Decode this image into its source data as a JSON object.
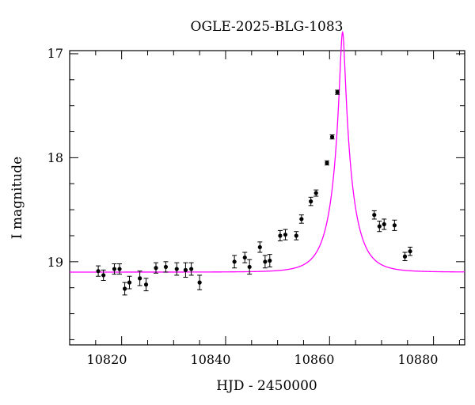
{
  "chart_data": {
    "type": "scatter",
    "title": "OGLE-2025-BLG-1083",
    "xlabel": "HJD - 2450000",
    "ylabel": "I magnitude",
    "xlim": [
      10810,
      10886
    ],
    "ylim": [
      19.8,
      16.97
    ],
    "y_inverted": true,
    "xticks": [
      10820,
      10840,
      10860,
      10880
    ],
    "xtick_labels": [
      "10820",
      "10840",
      "10860",
      "10880"
    ],
    "yticks": [
      17,
      18,
      19
    ],
    "ytick_labels": [
      "17",
      "18",
      "19"
    ],
    "grid": false,
    "colors": {
      "points": "#000000",
      "model": "#ff00ff",
      "axes": "#000000"
    },
    "series": [
      {
        "kind": "data",
        "points": [
          {
            "x": 10815.5,
            "y": 19.09,
            "err": 0.05
          },
          {
            "x": 10816.5,
            "y": 19.13,
            "err": 0.05
          },
          {
            "x": 10818.6,
            "y": 19.07,
            "err": 0.05
          },
          {
            "x": 10819.6,
            "y": 19.07,
            "err": 0.05
          },
          {
            "x": 10820.6,
            "y": 19.26,
            "err": 0.06
          },
          {
            "x": 10821.5,
            "y": 19.2,
            "err": 0.06
          },
          {
            "x": 10823.5,
            "y": 19.16,
            "err": 0.07
          },
          {
            "x": 10824.7,
            "y": 19.22,
            "err": 0.06
          },
          {
            "x": 10826.6,
            "y": 19.06,
            "err": 0.05
          },
          {
            "x": 10828.5,
            "y": 19.05,
            "err": 0.05
          },
          {
            "x": 10830.6,
            "y": 19.07,
            "err": 0.06
          },
          {
            "x": 10832.3,
            "y": 19.08,
            "err": 0.07
          },
          {
            "x": 10833.4,
            "y": 19.07,
            "err": 0.06
          },
          {
            "x": 10835.0,
            "y": 19.2,
            "err": 0.07
          },
          {
            "x": 10841.7,
            "y": 19.0,
            "err": 0.06
          },
          {
            "x": 10843.7,
            "y": 18.96,
            "err": 0.05
          },
          {
            "x": 10844.6,
            "y": 19.05,
            "err": 0.07
          },
          {
            "x": 10846.6,
            "y": 18.86,
            "err": 0.05
          },
          {
            "x": 10847.6,
            "y": 19.0,
            "err": 0.06
          },
          {
            "x": 10848.5,
            "y": 18.99,
            "err": 0.06
          },
          {
            "x": 10850.5,
            "y": 18.75,
            "err": 0.05
          },
          {
            "x": 10851.5,
            "y": 18.74,
            "err": 0.05
          },
          {
            "x": 10853.6,
            "y": 18.75,
            "err": 0.04
          },
          {
            "x": 10854.6,
            "y": 18.59,
            "err": 0.04
          },
          {
            "x": 10856.4,
            "y": 18.42,
            "err": 0.04
          },
          {
            "x": 10857.4,
            "y": 18.34,
            "err": 0.03
          },
          {
            "x": 10859.5,
            "y": 18.05,
            "err": 0.02
          },
          {
            "x": 10860.5,
            "y": 17.8,
            "err": 0.02
          },
          {
            "x": 10861.5,
            "y": 17.37,
            "err": 0.02
          },
          {
            "x": 10868.6,
            "y": 18.55,
            "err": 0.04
          },
          {
            "x": 10869.6,
            "y": 18.66,
            "err": 0.05
          },
          {
            "x": 10870.5,
            "y": 18.64,
            "err": 0.05
          },
          {
            "x": 10872.5,
            "y": 18.65,
            "err": 0.05
          },
          {
            "x": 10874.5,
            "y": 18.95,
            "err": 0.04
          },
          {
            "x": 10875.5,
            "y": 18.9,
            "err": 0.04
          }
        ]
      },
      {
        "kind": "model",
        "line": true,
        "t0": 10862.5,
        "tE": 3.9,
        "u0": 0.12,
        "Ibase": 19.1,
        "x_range": [
          10810,
          10886
        ]
      }
    ]
  }
}
